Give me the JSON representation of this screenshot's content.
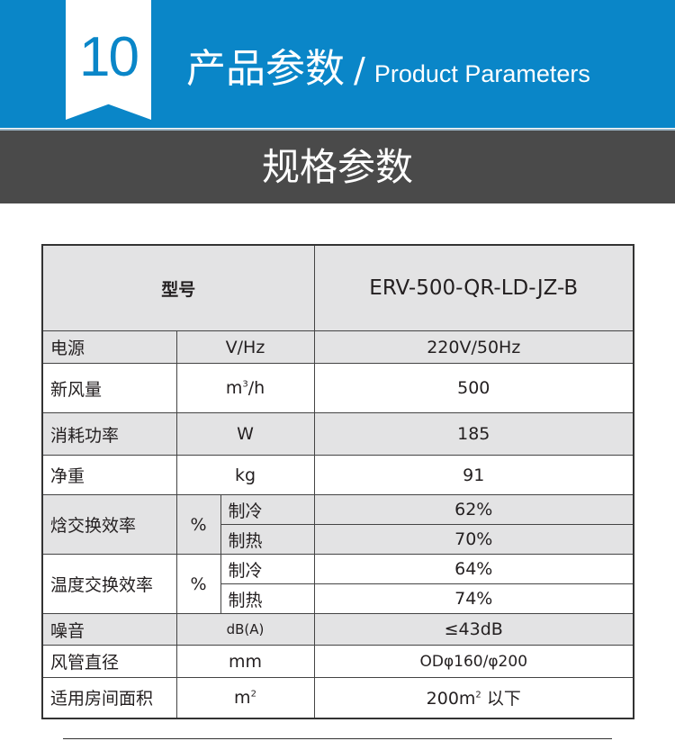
{
  "header": {
    "number": "10",
    "title_cn": "产品参数",
    "separator": "/",
    "title_en": "Product Parameters"
  },
  "section_title": "规格参数",
  "table": {
    "model_label": "型号",
    "model_value": "ERV-500-QR-LD-JZ-B",
    "rows": [
      {
        "name": "电源",
        "unit": "V/Hz",
        "value": "220V/50Hz"
      },
      {
        "name": "新风量",
        "unit": "m",
        "unit_sup": "3",
        "unit_suffix": "/h",
        "value": "500"
      },
      {
        "name": "消耗功率",
        "unit": "W",
        "value": "185"
      },
      {
        "name": "净重",
        "unit": "kg",
        "value": "91"
      },
      {
        "name": "焓交换效率",
        "unit": "%",
        "sub": [
          {
            "mode": "制冷",
            "value": "62%"
          },
          {
            "mode": "制热",
            "value": "70%"
          }
        ]
      },
      {
        "name": "温度交换效率",
        "unit": "%",
        "sub": [
          {
            "mode": "制冷",
            "value": "64%"
          },
          {
            "mode": "制热",
            "value": "74%"
          }
        ]
      },
      {
        "name": "噪音",
        "unit": "dB(A)",
        "value": "≤43dB"
      },
      {
        "name": "风管直径",
        "unit": "mm",
        "value": "ODφ160/φ200"
      },
      {
        "name": "适用房间面积",
        "unit": "m",
        "unit_sup": "2",
        "value": "200m",
        "value_sup": "2",
        "value_suffix": " 以下"
      }
    ]
  }
}
